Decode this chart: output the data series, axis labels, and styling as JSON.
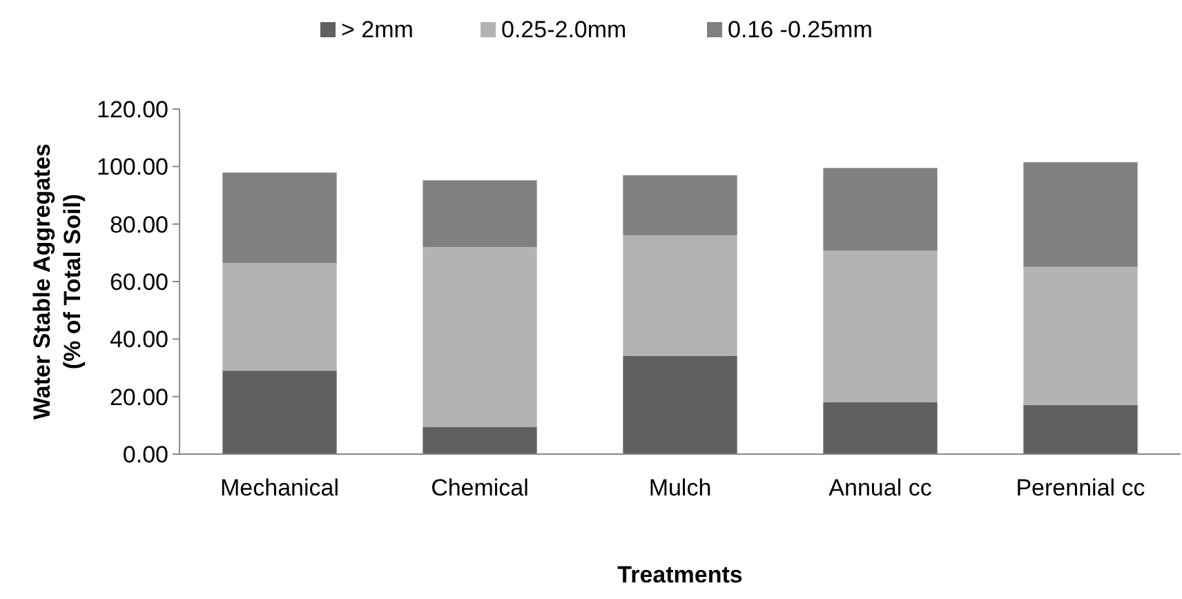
{
  "chart_data": {
    "type": "bar",
    "stacked": true,
    "xlabel": "Treatments",
    "ylabel": "Water Stable Aggregates\n(% of Total Soil)",
    "categories": [
      "Mechanical",
      "Chemical",
      "Mulch",
      "Annual cc",
      "Perennial cc"
    ],
    "series": [
      {
        "name": "> 2mm",
        "color": "#606060",
        "values": [
          29.0,
          9.5,
          34.2,
          18.0,
          17.1
        ]
      },
      {
        "name": "0.25-2.0mm",
        "color": "#b3b3b3",
        "values": [
          37.4,
          62.5,
          41.9,
          52.7,
          48.0
        ]
      },
      {
        "name": "0.16 -0.25mm",
        "color": "#808080",
        "values": [
          31.5,
          23.2,
          20.9,
          28.8,
          36.4
        ]
      }
    ],
    "ylim": [
      0,
      120
    ],
    "yticks": [
      {
        "value": 0,
        "label": "0.00"
      },
      {
        "value": 20,
        "label": "20.00"
      },
      {
        "value": 40,
        "label": "40.00"
      },
      {
        "value": 60,
        "label": "60.00"
      },
      {
        "value": 80,
        "label": "80.00"
      },
      {
        "value": 100,
        "label": "100.00"
      },
      {
        "value": 120,
        "label": "120.00"
      }
    ],
    "grid": false,
    "legend": "top"
  }
}
